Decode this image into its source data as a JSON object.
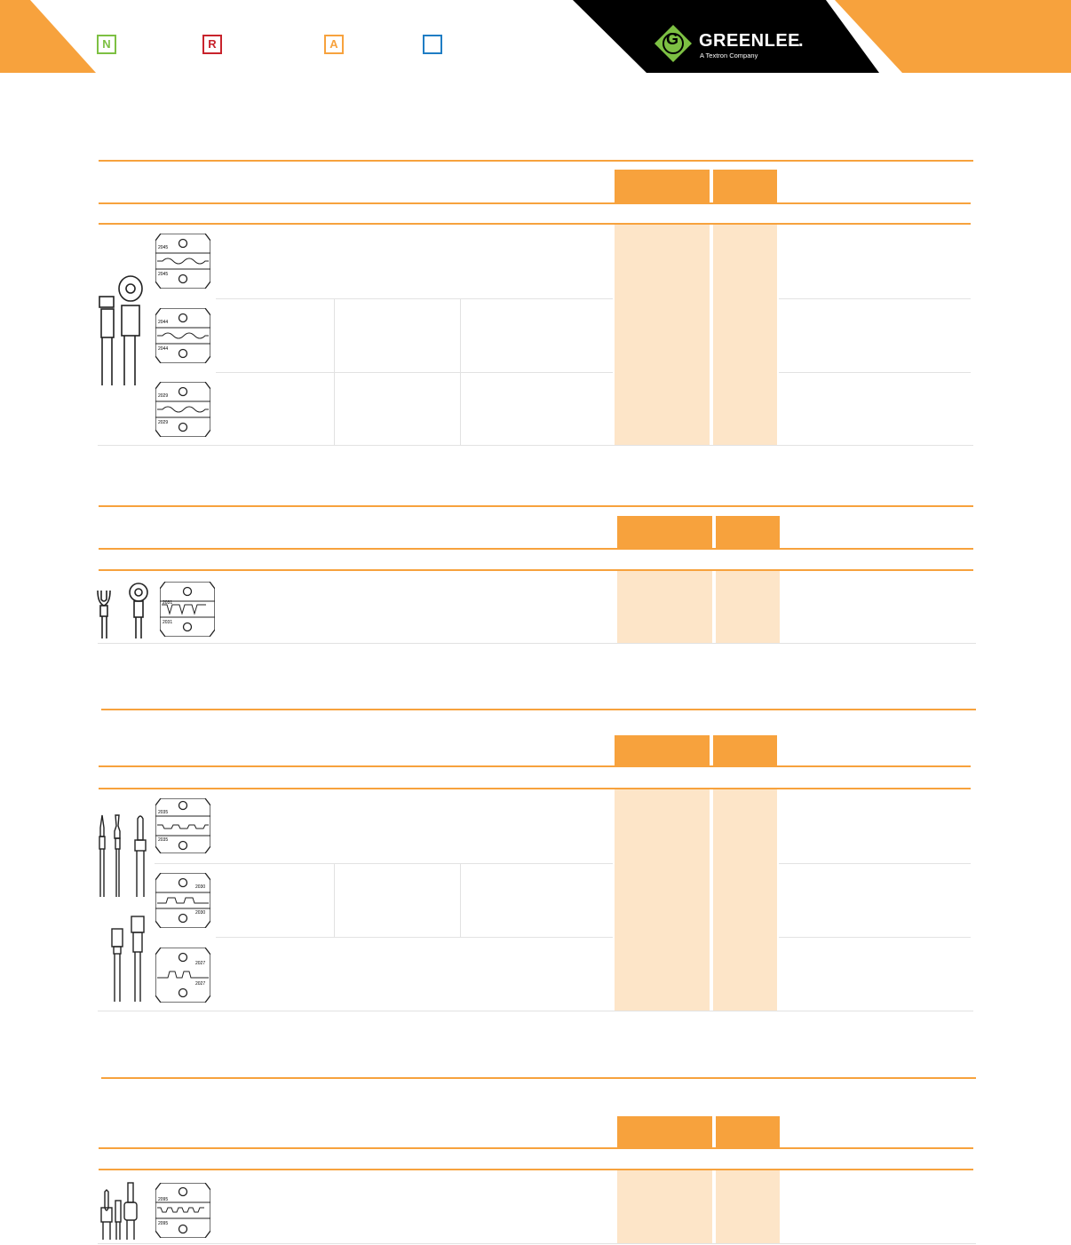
{
  "header": {
    "badges": [
      {
        "letter": "N",
        "color": "#7dc043"
      },
      {
        "letter": "R",
        "color": "#c8232c"
      },
      {
        "letter": "A",
        "color": "#f7a23d"
      },
      {
        "letter": "",
        "color": "#1f7dc4"
      }
    ],
    "logo": {
      "brand": "GREENLEE",
      "trademark": ".",
      "tagline": "A Textron Company",
      "mark_letter": "G",
      "brand_color": "#7dc043"
    },
    "accent_color": "#f7a23d",
    "band_color": "#000000"
  },
  "sections": [
    {
      "name": "insulated-terminals",
      "die_labels": [
        [
          "2045",
          "2045"
        ],
        [
          "2044",
          "2044"
        ],
        [
          "2029",
          "2029"
        ]
      ]
    },
    {
      "name": "non-insulated-terminals",
      "die_labels": [
        [
          "2031",
          "2031"
        ]
      ]
    },
    {
      "name": "connectors",
      "die_labels": [
        [
          "2035",
          "2035"
        ],
        [
          "2030",
          "2030"
        ],
        [
          "2027",
          "2027"
        ]
      ]
    },
    {
      "name": "ferrules",
      "die_labels": [
        [
          "2095",
          "2095"
        ]
      ]
    }
  ]
}
